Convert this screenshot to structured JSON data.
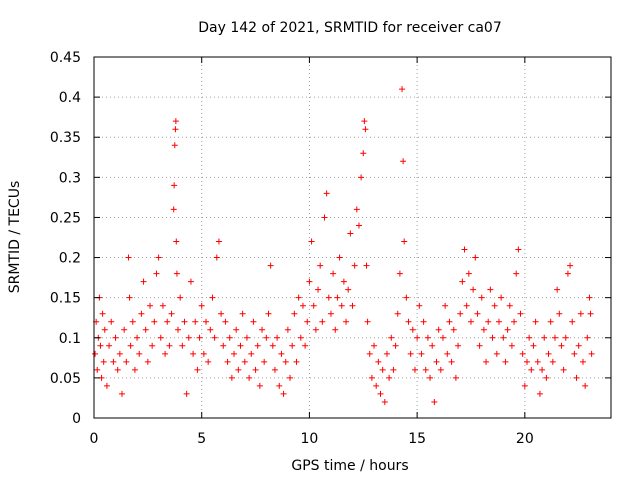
{
  "chart_data": {
    "type": "scatter",
    "title": "Day 142 of 2021, SRMTID for receiver ca07",
    "xlabel": "GPS time / hours",
    "ylabel": "SRMTID / TECUs",
    "xlim": [
      0,
      24
    ],
    "ylim": [
      0,
      0.45
    ],
    "x_ticks": [
      0,
      5,
      10,
      15,
      20
    ],
    "x_tick_labels": [
      "0",
      "5",
      "10",
      "15",
      "20"
    ],
    "y_ticks": [
      0,
      0.05,
      0.1,
      0.15,
      0.2,
      0.25,
      0.3,
      0.35,
      0.4,
      0.45
    ],
    "y_tick_labels": [
      "0",
      "0.05",
      "0.1",
      "0.15",
      "0.2",
      "0.25",
      "0.3",
      "0.35",
      "0.4",
      "0.45"
    ],
    "grid": true,
    "marker": "plus",
    "color": "#ff0000",
    "series": [
      {
        "name": "SRMTID",
        "points": [
          [
            0.05,
            0.08
          ],
          [
            0.1,
            0.12
          ],
          [
            0.15,
            0.06
          ],
          [
            0.2,
            0.1
          ],
          [
            0.25,
            0.15
          ],
          [
            0.3,
            0.09
          ],
          [
            0.35,
            0.05
          ],
          [
            0.4,
            0.13
          ],
          [
            0.45,
            0.07
          ],
          [
            0.5,
            0.11
          ],
          [
            0.6,
            0.04
          ],
          [
            0.7,
            0.09
          ],
          [
            0.8,
            0.12
          ],
          [
            0.9,
            0.07
          ],
          [
            1.0,
            0.1
          ],
          [
            1.1,
            0.06
          ],
          [
            1.2,
            0.08
          ],
          [
            1.3,
            0.03
          ],
          [
            1.4,
            0.11
          ],
          [
            1.5,
            0.07
          ],
          [
            1.6,
            0.2
          ],
          [
            1.65,
            0.15
          ],
          [
            1.7,
            0.09
          ],
          [
            1.8,
            0.12
          ],
          [
            1.9,
            0.06
          ],
          [
            2.0,
            0.1
          ],
          [
            2.1,
            0.08
          ],
          [
            2.2,
            0.13
          ],
          [
            2.3,
            0.17
          ],
          [
            2.4,
            0.11
          ],
          [
            2.5,
            0.07
          ],
          [
            2.6,
            0.14
          ],
          [
            2.7,
            0.09
          ],
          [
            2.8,
            0.12
          ],
          [
            2.9,
            0.18
          ],
          [
            3.0,
            0.2
          ],
          [
            3.1,
            0.1
          ],
          [
            3.2,
            0.14
          ],
          [
            3.3,
            0.08
          ],
          [
            3.4,
            0.12
          ],
          [
            3.5,
            0.09
          ],
          [
            3.6,
            0.13
          ],
          [
            3.7,
            0.26
          ],
          [
            3.72,
            0.29
          ],
          [
            3.75,
            0.34
          ],
          [
            3.78,
            0.36
          ],
          [
            3.8,
            0.37
          ],
          [
            3.82,
            0.22
          ],
          [
            3.85,
            0.18
          ],
          [
            3.9,
            0.11
          ],
          [
            4.0,
            0.15
          ],
          [
            4.1,
            0.09
          ],
          [
            4.2,
            0.12
          ],
          [
            4.3,
            0.03
          ],
          [
            4.4,
            0.1
          ],
          [
            4.5,
            0.17
          ],
          [
            4.6,
            0.08
          ],
          [
            4.7,
            0.12
          ],
          [
            4.8,
            0.06
          ],
          [
            4.9,
            0.1
          ],
          [
            5.0,
            0.14
          ],
          [
            5.1,
            0.08
          ],
          [
            5.2,
            0.12
          ],
          [
            5.3,
            0.07
          ],
          [
            5.4,
            0.11
          ],
          [
            5.5,
            0.15
          ],
          [
            5.6,
            0.1
          ],
          [
            5.7,
            0.2
          ],
          [
            5.8,
            0.22
          ],
          [
            5.9,
            0.13
          ],
          [
            6.0,
            0.09
          ],
          [
            6.1,
            0.12
          ],
          [
            6.2,
            0.07
          ],
          [
            6.3,
            0.1
          ],
          [
            6.4,
            0.05
          ],
          [
            6.5,
            0.08
          ],
          [
            6.6,
            0.11
          ],
          [
            6.7,
            0.06
          ],
          [
            6.8,
            0.09
          ],
          [
            6.9,
            0.13
          ],
          [
            7.0,
            0.07
          ],
          [
            7.1,
            0.1
          ],
          [
            7.2,
            0.05
          ],
          [
            7.3,
            0.08
          ],
          [
            7.4,
            0.12
          ],
          [
            7.5,
            0.06
          ],
          [
            7.6,
            0.09
          ],
          [
            7.7,
            0.04
          ],
          [
            7.8,
            0.11
          ],
          [
            7.9,
            0.07
          ],
          [
            8.0,
            0.1
          ],
          [
            8.1,
            0.13
          ],
          [
            8.2,
            0.19
          ],
          [
            8.3,
            0.09
          ],
          [
            8.4,
            0.06
          ],
          [
            8.5,
            0.1
          ],
          [
            8.6,
            0.04
          ],
          [
            8.7,
            0.08
          ],
          [
            8.8,
            0.03
          ],
          [
            8.9,
            0.07
          ],
          [
            9.0,
            0.11
          ],
          [
            9.1,
            0.05
          ],
          [
            9.2,
            0.09
          ],
          [
            9.3,
            0.13
          ],
          [
            9.4,
            0.07
          ],
          [
            9.5,
            0.15
          ],
          [
            9.6,
            0.1
          ],
          [
            9.7,
            0.14
          ],
          [
            9.8,
            0.09
          ],
          [
            9.9,
            0.12
          ],
          [
            10.0,
            0.17
          ],
          [
            10.1,
            0.22
          ],
          [
            10.2,
            0.14
          ],
          [
            10.3,
            0.11
          ],
          [
            10.4,
            0.16
          ],
          [
            10.5,
            0.19
          ],
          [
            10.6,
            0.12
          ],
          [
            10.7,
            0.25
          ],
          [
            10.8,
            0.28
          ],
          [
            10.9,
            0.15
          ],
          [
            11.0,
            0.13
          ],
          [
            11.1,
            0.18
          ],
          [
            11.2,
            0.11
          ],
          [
            11.3,
            0.15
          ],
          [
            11.4,
            0.2
          ],
          [
            11.5,
            0.14
          ],
          [
            11.6,
            0.17
          ],
          [
            11.7,
            0.12
          ],
          [
            11.8,
            0.16
          ],
          [
            11.9,
            0.23
          ],
          [
            12.0,
            0.14
          ],
          [
            12.1,
            0.19
          ],
          [
            12.2,
            0.26
          ],
          [
            12.3,
            0.24
          ],
          [
            12.4,
            0.3
          ],
          [
            12.5,
            0.33
          ],
          [
            12.55,
            0.37
          ],
          [
            12.6,
            0.36
          ],
          [
            12.65,
            0.19
          ],
          [
            12.7,
            0.12
          ],
          [
            12.8,
            0.08
          ],
          [
            12.9,
            0.05
          ],
          [
            13.0,
            0.09
          ],
          [
            13.1,
            0.04
          ],
          [
            13.2,
            0.07
          ],
          [
            13.3,
            0.03
          ],
          [
            13.4,
            0.06
          ],
          [
            13.5,
            0.02
          ],
          [
            13.6,
            0.08
          ],
          [
            13.7,
            0.05
          ],
          [
            13.8,
            0.1
          ],
          [
            13.9,
            0.06
          ],
          [
            14.0,
            0.09
          ],
          [
            14.1,
            0.13
          ],
          [
            14.2,
            0.18
          ],
          [
            14.3,
            0.41
          ],
          [
            14.35,
            0.32
          ],
          [
            14.4,
            0.22
          ],
          [
            14.5,
            0.15
          ],
          [
            14.6,
            0.12
          ],
          [
            14.7,
            0.08
          ],
          [
            14.8,
            0.11
          ],
          [
            14.9,
            0.06
          ],
          [
            15.0,
            0.1
          ],
          [
            15.1,
            0.14
          ],
          [
            15.2,
            0.08
          ],
          [
            15.3,
            0.12
          ],
          [
            15.4,
            0.06
          ],
          [
            15.5,
            0.1
          ],
          [
            15.6,
            0.05
          ],
          [
            15.7,
            0.09
          ],
          [
            15.8,
            0.02
          ],
          [
            15.9,
            0.07
          ],
          [
            16.0,
            0.11
          ],
          [
            16.1,
            0.06
          ],
          [
            16.2,
            0.1
          ],
          [
            16.3,
            0.14
          ],
          [
            16.4,
            0.08
          ],
          [
            16.5,
            0.12
          ],
          [
            16.6,
            0.07
          ],
          [
            16.7,
            0.11
          ],
          [
            16.8,
            0.05
          ],
          [
            16.9,
            0.09
          ],
          [
            17.0,
            0.13
          ],
          [
            17.1,
            0.17
          ],
          [
            17.2,
            0.21
          ],
          [
            17.3,
            0.14
          ],
          [
            17.4,
            0.18
          ],
          [
            17.5,
            0.12
          ],
          [
            17.6,
            0.16
          ],
          [
            17.7,
            0.2
          ],
          [
            17.8,
            0.13
          ],
          [
            17.9,
            0.09
          ],
          [
            18.0,
            0.15
          ],
          [
            18.1,
            0.11
          ],
          [
            18.2,
            0.07
          ],
          [
            18.3,
            0.12
          ],
          [
            18.4,
            0.16
          ],
          [
            18.5,
            0.1
          ],
          [
            18.6,
            0.14
          ],
          [
            18.7,
            0.08
          ],
          [
            18.8,
            0.12
          ],
          [
            18.9,
            0.15
          ],
          [
            19.0,
            0.1
          ],
          [
            19.1,
            0.07
          ],
          [
            19.2,
            0.11
          ],
          [
            19.3,
            0.14
          ],
          [
            19.4,
            0.09
          ],
          [
            19.5,
            0.12
          ],
          [
            19.6,
            0.18
          ],
          [
            19.7,
            0.21
          ],
          [
            19.8,
            0.13
          ],
          [
            19.9,
            0.08
          ],
          [
            20.0,
            0.04
          ],
          [
            20.1,
            0.07
          ],
          [
            20.2,
            0.1
          ],
          [
            20.3,
            0.06
          ],
          [
            20.4,
            0.09
          ],
          [
            20.5,
            0.12
          ],
          [
            20.6,
            0.07
          ],
          [
            20.7,
            0.03
          ],
          [
            20.8,
            0.06
          ],
          [
            20.9,
            0.1
          ],
          [
            21.0,
            0.05
          ],
          [
            21.1,
            0.08
          ],
          [
            21.2,
            0.12
          ],
          [
            21.3,
            0.07
          ],
          [
            21.4,
            0.1
          ],
          [
            21.5,
            0.16
          ],
          [
            21.6,
            0.13
          ],
          [
            21.7,
            0.09
          ],
          [
            21.8,
            0.06
          ],
          [
            21.9,
            0.1
          ],
          [
            22.0,
            0.18
          ],
          [
            22.1,
            0.19
          ],
          [
            22.2,
            0.12
          ],
          [
            22.3,
            0.08
          ],
          [
            22.4,
            0.05
          ],
          [
            22.5,
            0.09
          ],
          [
            22.6,
            0.13
          ],
          [
            22.7,
            0.07
          ],
          [
            22.8,
            0.04
          ],
          [
            22.9,
            0.1
          ],
          [
            23.0,
            0.15
          ],
          [
            23.05,
            0.13
          ],
          [
            23.1,
            0.08
          ]
        ]
      }
    ]
  }
}
